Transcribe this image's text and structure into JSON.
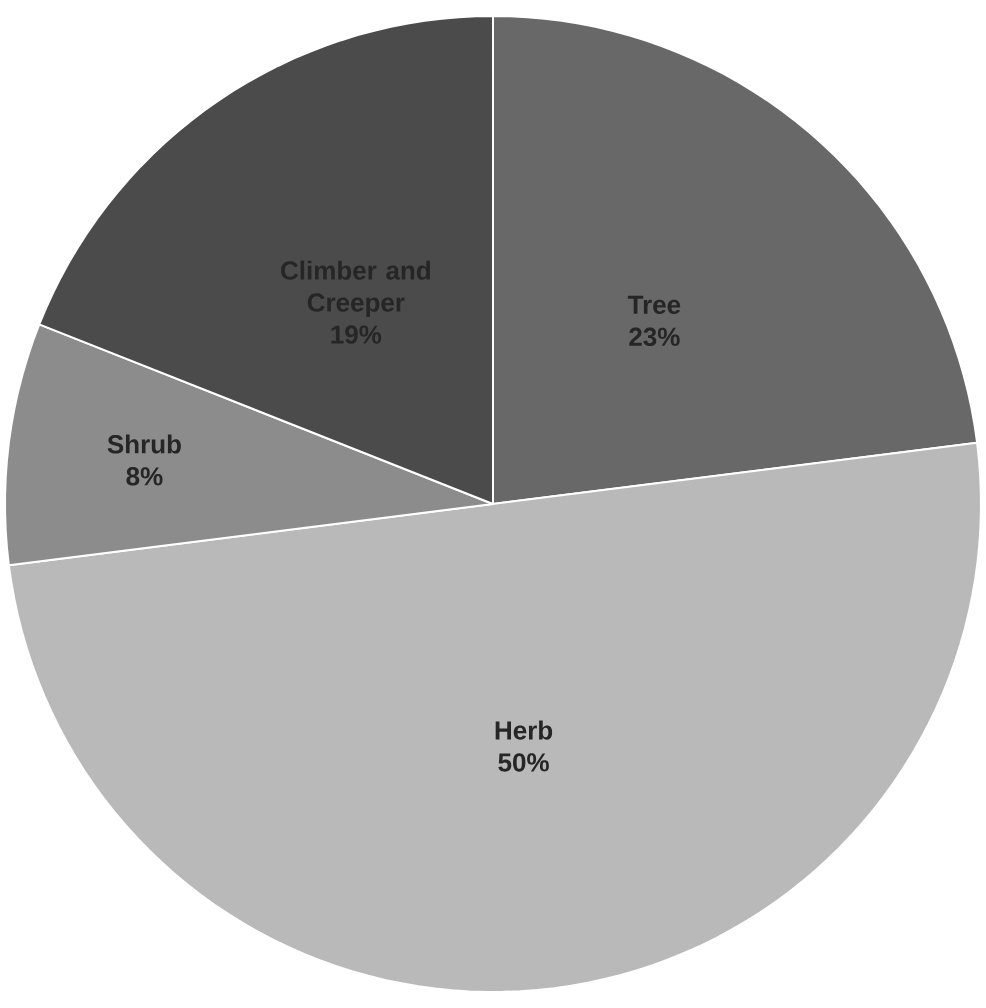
{
  "chart_data": {
    "type": "pie",
    "categories": [
      "Tree",
      "Herb",
      "Shrub",
      "Climber and Creeper"
    ],
    "values": [
      23,
      50,
      8,
      19
    ],
    "value_labels": [
      "23%",
      "50%",
      "8%",
      "19%"
    ],
    "colors": [
      "#686868",
      "#b9b9b9",
      "#8c8c8c",
      "#4b4b4b"
    ]
  }
}
